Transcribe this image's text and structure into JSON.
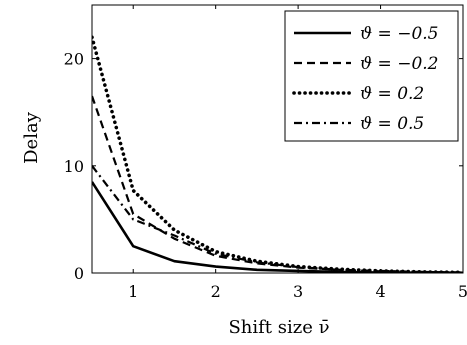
{
  "chart_data": {
    "type": "line",
    "xlabel": "Shift size ν̄",
    "ylabel": "Delay",
    "xlim": [
      0.5,
      5
    ],
    "ylim": [
      0,
      25
    ],
    "x_ticks": [
      "1",
      "2",
      "3",
      "4",
      "5"
    ],
    "y_ticks": [
      "0",
      "10",
      "20"
    ],
    "grid": false,
    "legend_position": "top-right",
    "series": [
      {
        "name": "ϑ = −0.5",
        "style": "solid",
        "color": "#000000",
        "x": [
          0.5,
          1.0,
          1.5,
          2.0,
          2.5,
          3.0,
          3.5,
          4.0,
          4.5,
          5.0
        ],
        "y": [
          8.5,
          2.5,
          1.1,
          0.6,
          0.3,
          0.2,
          0.1,
          0.05,
          0.03,
          0.02
        ]
      },
      {
        "name": "ϑ = −0.2",
        "style": "dashed",
        "color": "#000000",
        "x": [
          0.5,
          1.0,
          1.5,
          2.0,
          2.5,
          3.0,
          3.5,
          4.0,
          4.5,
          5.0
        ],
        "y": [
          16.5,
          5.5,
          3.2,
          1.6,
          0.9,
          0.5,
          0.3,
          0.15,
          0.1,
          0.05
        ]
      },
      {
        "name": "ϑ = 0.2",
        "style": "dotted",
        "color": "#000000",
        "x": [
          0.5,
          1.0,
          1.5,
          2.0,
          2.5,
          3.0,
          3.5,
          4.0,
          4.5,
          5.0
        ],
        "y": [
          22.0,
          7.7,
          4.0,
          2.0,
          1.1,
          0.6,
          0.35,
          0.2,
          0.1,
          0.06
        ]
      },
      {
        "name": "ϑ = 0.5",
        "style": "dashdot",
        "color": "#000000",
        "x": [
          0.5,
          1.0,
          1.5,
          2.0,
          2.5,
          3.0,
          3.5,
          4.0,
          4.5,
          5.0
        ],
        "y": [
          10.0,
          5.0,
          3.5,
          1.8,
          1.0,
          0.55,
          0.3,
          0.2,
          0.1,
          0.05
        ]
      }
    ]
  }
}
